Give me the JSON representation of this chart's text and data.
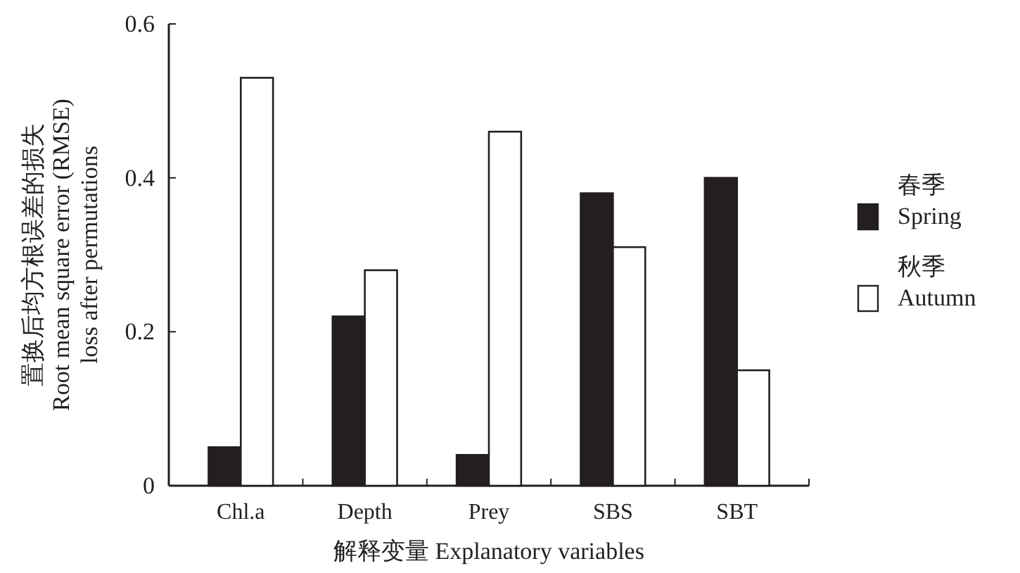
{
  "chart_data": {
    "type": "bar",
    "xlabel": "解释变量 Explanatory variables",
    "ylabel": "置换后均方根误差的损失\nRoot mean square error (RMSE)\nloss after permutations",
    "categories": [
      "Chl.a",
      "Depth",
      "Prey",
      "SBS",
      "SBT"
    ],
    "series": [
      {
        "name": "春季\nSpring",
        "color": "#231f20",
        "values": [
          0.05,
          0.22,
          0.04,
          0.38,
          0.4
        ]
      },
      {
        "name": "秋季\nAutumn",
        "color": "#ffffff",
        "values": [
          0.53,
          0.28,
          0.46,
          0.31,
          0.15
        ]
      }
    ],
    "ylim": [
      0,
      0.6
    ],
    "yticks": [
      0,
      0.2,
      0.4,
      0.6
    ],
    "legend": "right"
  }
}
